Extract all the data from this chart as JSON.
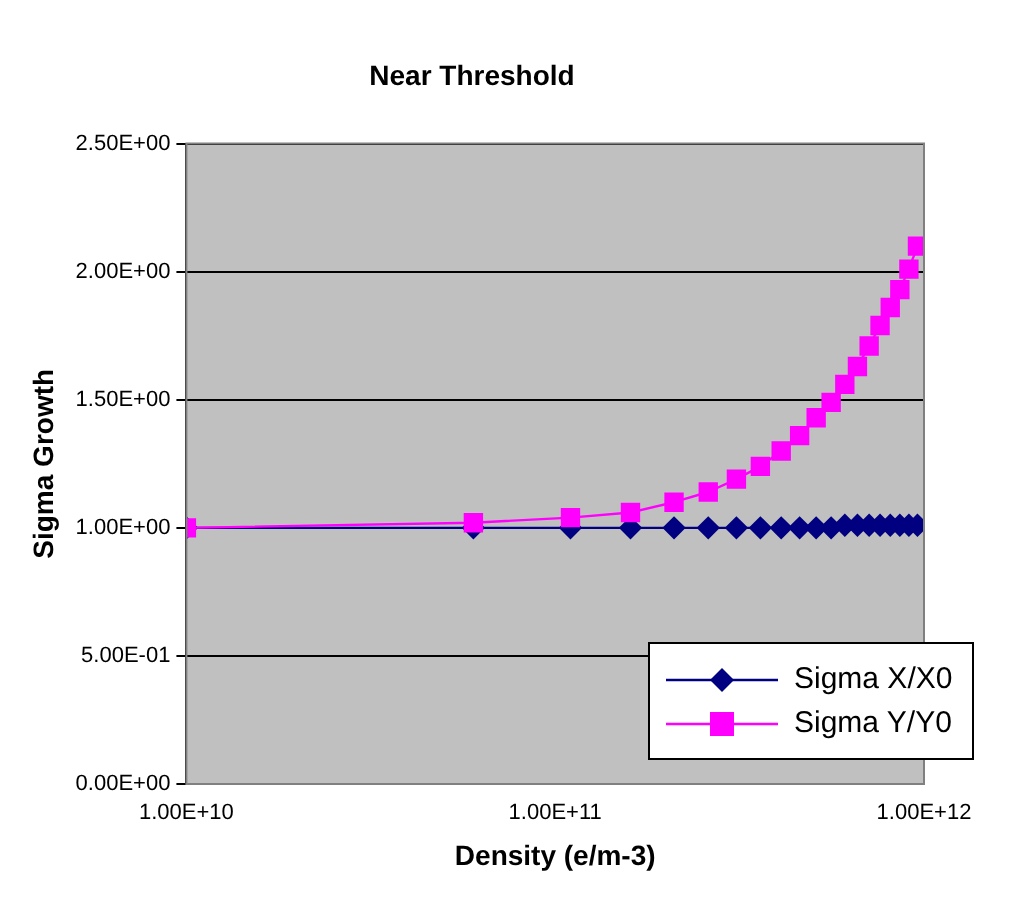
{
  "chart_data": {
    "type": "line",
    "title": "Near Threshold",
    "xlabel": "Density (e/m-3)",
    "ylabel": "Sigma Growth",
    "x": [
      10000000000.0,
      60000000000.0,
      110000000000.0,
      160000000000.0,
      210000000000.0,
      260000000000.0,
      310000000000.0,
      360000000000.0,
      410000000000.0,
      460000000000.0,
      510000000000.0,
      560000000000.0,
      610000000000.0,
      660000000000.0,
      710000000000.0,
      760000000000.0,
      810000000000.0,
      860000000000.0,
      910000000000.0,
      960000000000.0
    ],
    "series": [
      {
        "name": "Sigma X/X0",
        "color": "#000080",
        "marker": "diamond",
        "values": [
          1.0,
          1.0,
          1.0,
          1.0,
          1.0,
          1.0,
          1.0,
          1.0,
          1.0,
          1.0,
          1.0,
          1.0,
          1.01,
          1.01,
          1.01,
          1.01,
          1.01,
          1.01,
          1.01,
          1.01
        ]
      },
      {
        "name": "Sigma Y/Y0",
        "color": "#ff00ff",
        "marker": "square",
        "values": [
          1.0,
          1.02,
          1.04,
          1.06,
          1.1,
          1.14,
          1.19,
          1.24,
          1.3,
          1.36,
          1.43,
          1.49,
          1.56,
          1.63,
          1.71,
          1.79,
          1.86,
          1.93,
          2.01,
          2.1
        ]
      }
    ],
    "log": "x",
    "xlim": [
      10000000000.0,
      1000000000000.0
    ],
    "xticks": [
      {
        "value": 10000000000.0,
        "label": "1.00E+10"
      },
      {
        "value": 100000000000.0,
        "label": "1.00E+11"
      },
      {
        "value": 1000000000000.0,
        "label": "1.00E+12"
      }
    ],
    "ylim": [
      0,
      2.5
    ],
    "yticks": [
      {
        "value": 0,
        "label": "0.00E+00"
      },
      {
        "value": 0.5,
        "label": "5.00E-01"
      },
      {
        "value": 1,
        "label": "1.00E+00"
      },
      {
        "value": 1.5,
        "label": "1.50E+00"
      },
      {
        "value": 2,
        "label": "2.00E+00"
      },
      {
        "value": 2.5,
        "label": "2.50E+00"
      }
    ],
    "grid": "y",
    "legend": "bottom right",
    "line_style": "solid"
  }
}
